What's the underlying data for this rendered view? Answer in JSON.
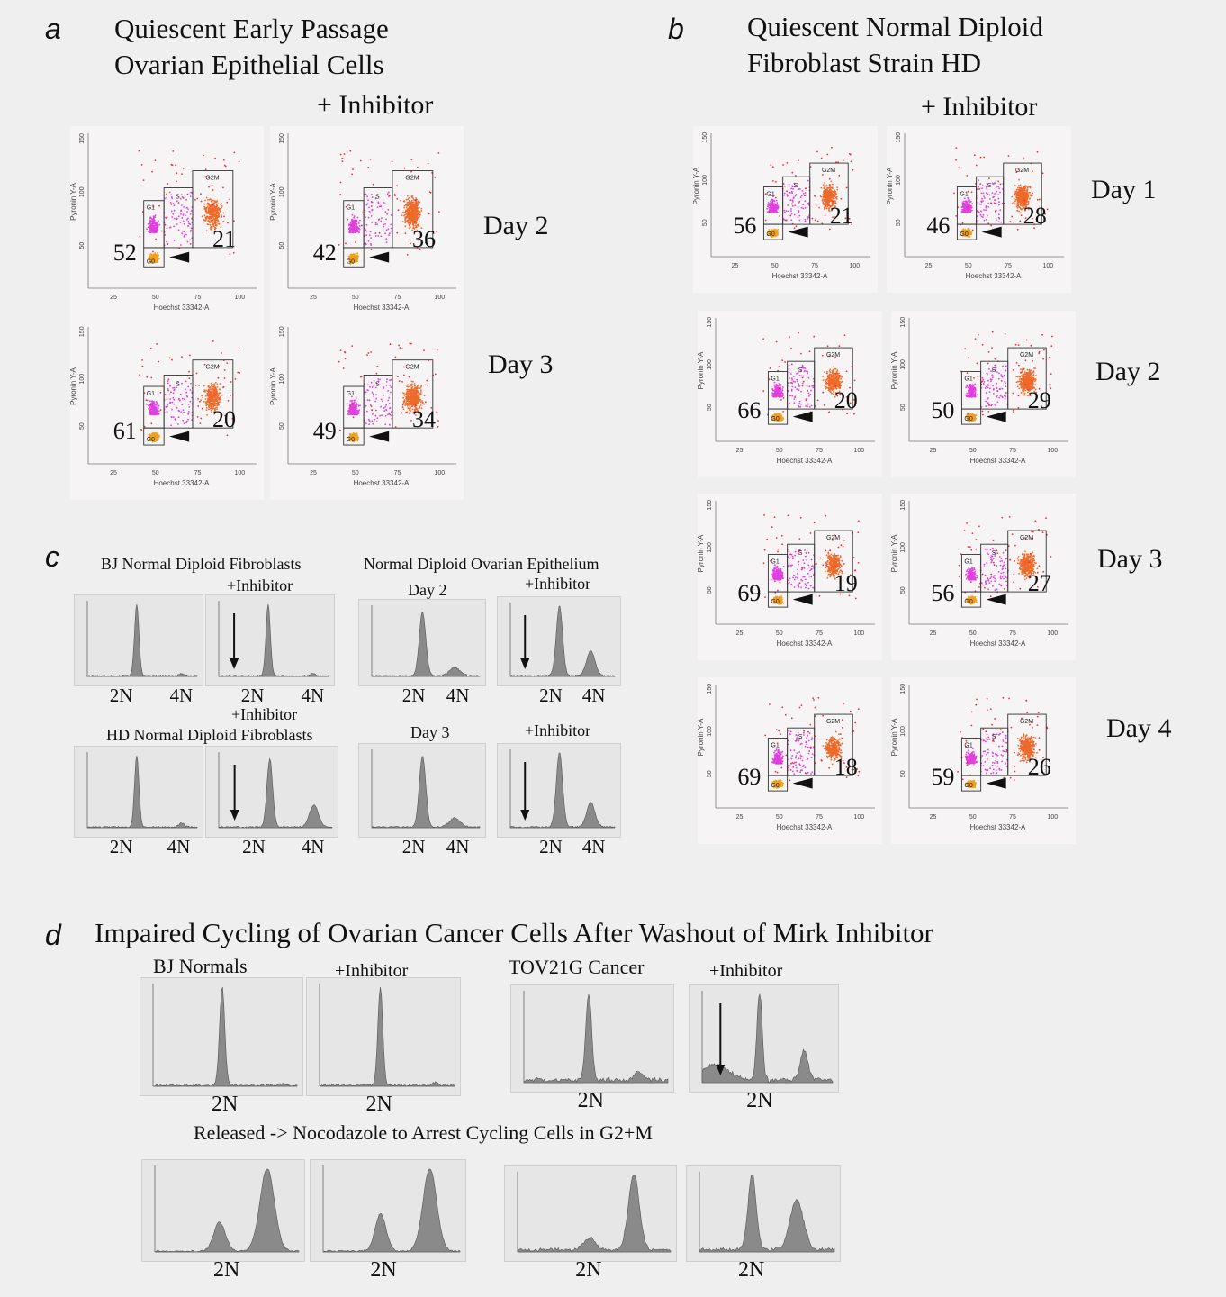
{
  "panel_a": {
    "letter": "a",
    "title_line1": "Quiescent Early Passage",
    "title_line2": "Ovarian Epithelial Cells",
    "inhibitor": "+ Inhibitor",
    "days": [
      "Day 2",
      "Day 3"
    ],
    "plots": [
      {
        "g0": "52",
        "g2m": "21"
      },
      {
        "g0": "42",
        "g2m": "36"
      },
      {
        "g0": "61",
        "g2m": "20"
      },
      {
        "g0": "49",
        "g2m": "34"
      }
    ]
  },
  "panel_b": {
    "letter": "b",
    "title_line1": "Quiescent Normal Diploid",
    "title_line2": "Fibroblast Strain HD",
    "inhibitor": "+ Inhibitor",
    "days": [
      "Day 1",
      "Day 2",
      "Day 3",
      "Day 4"
    ],
    "plots": [
      {
        "g0": "56",
        "g2m": "21"
      },
      {
        "g0": "46",
        "g2m": "28"
      },
      {
        "g0": "66",
        "g2m": "20"
      },
      {
        "g0": "50",
        "g2m": "29"
      },
      {
        "g0": "69",
        "g2m": "19"
      },
      {
        "g0": "56",
        "g2m": "27"
      },
      {
        "g0": "69",
        "g2m": "18"
      },
      {
        "g0": "59",
        "g2m": "26"
      }
    ]
  },
  "flow_axes": {
    "xlabel": "Hoechst 33342-A",
    "ylabel": "Pyronin Y-A",
    "xticks": [
      "25",
      "50",
      "75",
      "100"
    ],
    "yticks": [
      "50",
      "100",
      "150"
    ],
    "gates": [
      "G0",
      "G1",
      "S",
      "G2M"
    ],
    "colors": {
      "g0": "#f0a020",
      "g1": "#e040e0",
      "g2m": "#ee6a2a",
      "stray": "#e8303a"
    }
  },
  "panel_c": {
    "letter": "c",
    "bj_title": "BJ Normal Diploid Fibroblasts",
    "bj_inhibitor": "+Inhibitor",
    "hd_inhibitor": "+Inhibitor",
    "hd_title": "HD Normal Diploid Fibroblasts",
    "ovarian_title": "Normal Diploid Ovarian Epithelium",
    "day2": "Day 2",
    "day3": "Day 3",
    "ov_inhibitor_1": "+Inhibitor",
    "ov_inhibitor_2": "+Inhibitor",
    "n2": "2N",
    "n4": "4N"
  },
  "panel_d": {
    "letter": "d",
    "title": "Impaired Cycling of Ovarian Cancer Cells After Washout of Mirk Inhibitor",
    "bj_label": "BJ Normals",
    "bj_inhibitor": "+Inhibitor",
    "tov_label": "TOV21G Cancer",
    "tov_inhibitor": "+Inhibitor",
    "released": "Released -> Nocodazole to Arrest Cycling Cells in G2+M",
    "n2": "2N"
  }
}
